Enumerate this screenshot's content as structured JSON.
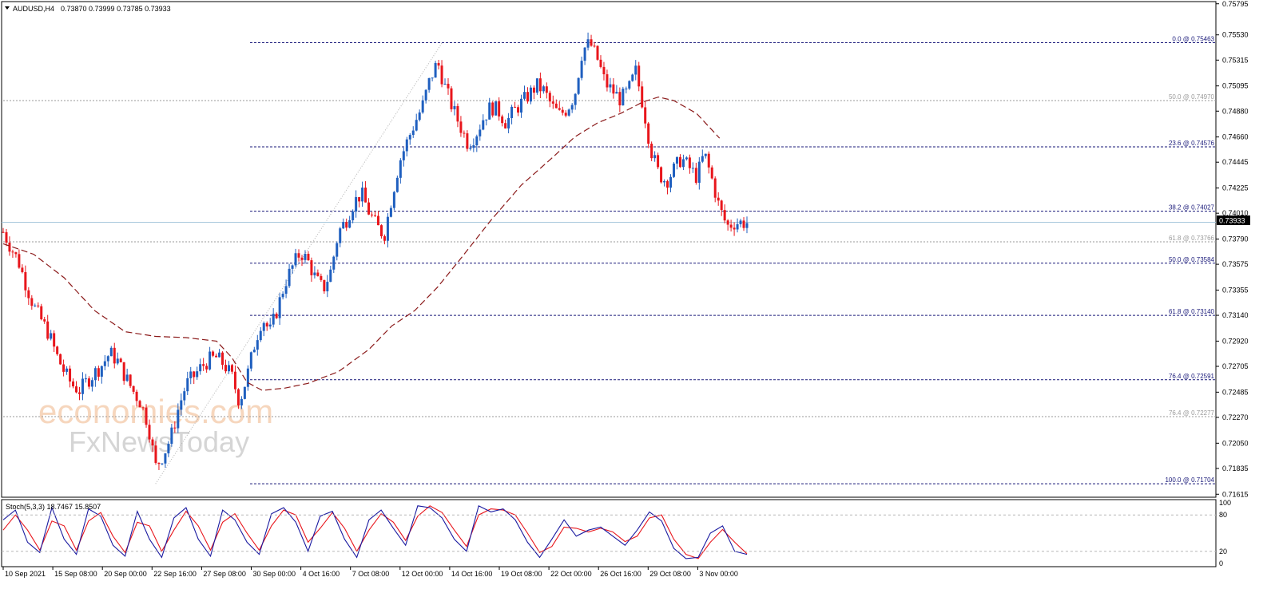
{
  "header": {
    "symbol": "AUDUSD,H4",
    "ohlc": "0.73870 0.73999 0.73785 0.73933"
  },
  "stoch": {
    "label": "Stoch(5,3,3) 18.7467 15.8507",
    "levels": [
      "100",
      "80",
      "20",
      "0"
    ]
  },
  "watermark": {
    "line1": "economies.com",
    "line2": "FxNewsToday"
  },
  "colors": {
    "bull": "#1f5fbf",
    "bear": "#e8161c",
    "ma": "#8b1a1a",
    "fib": "#1a1a7a",
    "fib_gray": "#9a9a9a",
    "stoch_main": "#1a1aa0",
    "stoch_signal": "#e8161c",
    "price_line": "#a8c8dc"
  },
  "chart_data": {
    "type": "candlestick",
    "symbol": "AUDUSD",
    "timeframe": "H4",
    "ylim": [
      0.7161,
      0.758
    ],
    "y_ticks": [
      "0.75795",
      "0.75530",
      "0.75315",
      "0.75095",
      "0.74880",
      "0.74660",
      "0.74445",
      "0.74225",
      "0.74010",
      "0.73790",
      "0.73575",
      "0.73355",
      "0.73140",
      "0.72920",
      "0.72705",
      "0.72485",
      "0.72270",
      "0.72050",
      "0.71835",
      "0.71615"
    ],
    "x_tick_labels": [
      "10 Sep 2021",
      "15 Sep 08:00",
      "20 Sep 00:00",
      "22 Sep 16:00",
      "27 Sep 08:00",
      "30 Sep 00:00",
      "4 Oct 16:00",
      "7 Oct 08:00",
      "12 Oct 00:00",
      "14 Oct 16:00",
      "19 Oct 08:00",
      "22 Oct 00:00",
      "26 Oct 16:00",
      "29 Oct 08:00",
      "3 Nov 00:00"
    ],
    "current_price": "0.73933",
    "fib_levels": [
      {
        "label": "0.0 @ 0.75463",
        "value": 0.75463,
        "style": "primary"
      },
      {
        "label": "50.0 @ 0.74970",
        "value": 0.7497,
        "style": "secondary"
      },
      {
        "label": "23.6 @ 0.74576",
        "value": 0.74576,
        "style": "primary"
      },
      {
        "label": "38.2 @ 0.74027",
        "value": 0.74027,
        "style": "primary"
      },
      {
        "label": "61.8 @ 0.73766",
        "value": 0.73766,
        "style": "secondary"
      },
      {
        "label": "50.0 @ 0.73584",
        "value": 0.73584,
        "style": "primary"
      },
      {
        "label": "61.8 @ 0.73140",
        "value": 0.7314,
        "style": "primary"
      },
      {
        "label": "76.4 @ 0.72591",
        "value": 0.72591,
        "style": "primary"
      },
      {
        "label": "76.4 @ 0.72277",
        "value": 0.72277,
        "style": "secondary"
      },
      {
        "label": "100.0 @ 0.71704",
        "value": 0.71704,
        "style": "primary"
      }
    ],
    "close_path": [
      [
        0,
        0.7385
      ],
      [
        5,
        0.7372
      ],
      [
        10,
        0.736
      ],
      [
        15,
        0.734
      ],
      [
        20,
        0.7322
      ],
      [
        25,
        0.731
      ],
      [
        30,
        0.7298
      ],
      [
        35,
        0.728
      ],
      [
        40,
        0.7266
      ],
      [
        45,
        0.7255
      ],
      [
        50,
        0.725
      ],
      [
        55,
        0.7258
      ],
      [
        60,
        0.7265
      ],
      [
        65,
        0.7272
      ],
      [
        70,
        0.7282
      ],
      [
        75,
        0.7275
      ],
      [
        80,
        0.7262
      ],
      [
        85,
        0.725
      ],
      [
        90,
        0.724
      ],
      [
        95,
        0.7222
      ],
      [
        100,
        0.7185
      ],
      [
        105,
        0.7195
      ],
      [
        110,
        0.721
      ],
      [
        115,
        0.7235
      ],
      [
        120,
        0.7255
      ],
      [
        125,
        0.7262
      ],
      [
        130,
        0.727
      ],
      [
        135,
        0.7276
      ],
      [
        140,
        0.7278
      ],
      [
        145,
        0.7272
      ],
      [
        150,
        0.7262
      ],
      [
        155,
        0.724
      ],
      [
        160,
        0.7262
      ],
      [
        165,
        0.729
      ],
      [
        170,
        0.7312
      ],
      [
        175,
        0.73
      ],
      [
        180,
        0.732
      ],
      [
        185,
        0.7342
      ],
      [
        190,
        0.7356
      ],
      [
        195,
        0.7368
      ],
      [
        200,
        0.736
      ],
      [
        205,
        0.7345
      ],
      [
        210,
        0.7336
      ],
      [
        215,
        0.7352
      ],
      [
        220,
        0.7385
      ],
      [
        225,
        0.7395
      ],
      [
        230,
        0.741
      ],
      [
        235,
        0.7418
      ],
      [
        240,
        0.7402
      ],
      [
        245,
        0.739
      ],
      [
        250,
        0.7382
      ],
      [
        255,
        0.7415
      ],
      [
        260,
        0.7445
      ],
      [
        265,
        0.7462
      ],
      [
        270,
        0.7478
      ],
      [
        275,
        0.7492
      ],
      [
        280,
        0.7515
      ],
      [
        285,
        0.753
      ],
      [
        290,
        0.7508
      ],
      [
        295,
        0.749
      ],
      [
        300,
        0.7475
      ],
      [
        305,
        0.746
      ],
      [
        310,
        0.7468
      ],
      [
        315,
        0.7482
      ],
      [
        320,
        0.7492
      ],
      [
        325,
        0.7488
      ],
      [
        330,
        0.7478
      ],
      [
        335,
        0.7488
      ],
      [
        340,
        0.7495
      ],
      [
        345,
        0.7502
      ],
      [
        350,
        0.751
      ],
      [
        355,
        0.7505
      ],
      [
        360,
        0.7492
      ],
      [
        365,
        0.7485
      ],
      [
        370,
        0.749
      ],
      [
        375,
        0.7502
      ],
      [
        380,
        0.754
      ],
      [
        385,
        0.7546
      ],
      [
        390,
        0.7532
      ],
      [
        395,
        0.7512
      ],
      [
        400,
        0.7505
      ],
      [
        405,
        0.7498
      ],
      [
        410,
        0.7505
      ],
      [
        415,
        0.7522
      ],
      [
        420,
        0.7492
      ],
      [
        425,
        0.7455
      ],
      [
        430,
        0.7435
      ],
      [
        435,
        0.7428
      ],
      [
        440,
        0.7438
      ],
      [
        445,
        0.7448
      ],
      [
        450,
        0.744
      ],
      [
        455,
        0.7432
      ],
      [
        460,
        0.7452
      ],
      [
        465,
        0.743
      ],
      [
        470,
        0.7405
      ],
      [
        475,
        0.739
      ],
      [
        480,
        0.7393
      ]
    ],
    "ma_path": [
      [
        0,
        0.7375
      ],
      [
        20,
        0.7366
      ],
      [
        40,
        0.7346
      ],
      [
        60,
        0.7318
      ],
      [
        80,
        0.73
      ],
      [
        100,
        0.7296
      ],
      [
        120,
        0.7295
      ],
      [
        140,
        0.7292
      ],
      [
        150,
        0.7278
      ],
      [
        160,
        0.7257
      ],
      [
        170,
        0.725
      ],
      [
        185,
        0.7252
      ],
      [
        200,
        0.7256
      ],
      [
        220,
        0.7266
      ],
      [
        240,
        0.7285
      ],
      [
        255,
        0.7305
      ],
      [
        270,
        0.7318
      ],
      [
        285,
        0.7338
      ],
      [
        300,
        0.7362
      ],
      [
        320,
        0.7395
      ],
      [
        340,
        0.7425
      ],
      [
        360,
        0.7448
      ],
      [
        375,
        0.7466
      ],
      [
        390,
        0.7478
      ],
      [
        405,
        0.7486
      ],
      [
        420,
        0.7496
      ],
      [
        430,
        0.75
      ],
      [
        440,
        0.7497
      ],
      [
        455,
        0.7486
      ],
      [
        470,
        0.7465
      ]
    ],
    "stoch_main": [
      [
        0,
        72
      ],
      [
        8,
        88
      ],
      [
        16,
        35
      ],
      [
        24,
        18
      ],
      [
        32,
        92
      ],
      [
        40,
        40
      ],
      [
        48,
        15
      ],
      [
        56,
        90
      ],
      [
        64,
        78
      ],
      [
        72,
        30
      ],
      [
        80,
        12
      ],
      [
        88,
        86
      ],
      [
        96,
        40
      ],
      [
        104,
        10
      ],
      [
        112,
        75
      ],
      [
        120,
        92
      ],
      [
        128,
        40
      ],
      [
        136,
        12
      ],
      [
        144,
        88
      ],
      [
        152,
        72
      ],
      [
        160,
        35
      ],
      [
        168,
        15
      ],
      [
        176,
        82
      ],
      [
        184,
        92
      ],
      [
        192,
        68
      ],
      [
        200,
        20
      ],
      [
        208,
        78
      ],
      [
        216,
        86
      ],
      [
        224,
        40
      ],
      [
        232,
        10
      ],
      [
        240,
        72
      ],
      [
        248,
        88
      ],
      [
        256,
        58
      ],
      [
        264,
        30
      ],
      [
        272,
        95
      ],
      [
        280,
        92
      ],
      [
        288,
        75
      ],
      [
        296,
        40
      ],
      [
        304,
        20
      ],
      [
        312,
        95
      ],
      [
        320,
        85
      ],
      [
        328,
        90
      ],
      [
        336,
        72
      ],
      [
        344,
        35
      ],
      [
        352,
        10
      ],
      [
        360,
        40
      ],
      [
        368,
        72
      ],
      [
        376,
        45
      ],
      [
        384,
        55
      ],
      [
        392,
        60
      ],
      [
        400,
        45
      ],
      [
        408,
        30
      ],
      [
        416,
        55
      ],
      [
        424,
        85
      ],
      [
        432,
        70
      ],
      [
        440,
        25
      ],
      [
        448,
        8
      ],
      [
        456,
        10
      ],
      [
        464,
        50
      ],
      [
        472,
        62
      ],
      [
        480,
        20
      ],
      [
        488,
        15
      ]
    ],
    "stoch_signal": [
      [
        0,
        55
      ],
      [
        8,
        80
      ],
      [
        16,
        55
      ],
      [
        24,
        22
      ],
      [
        32,
        70
      ],
      [
        40,
        62
      ],
      [
        48,
        22
      ],
      [
        56,
        70
      ],
      [
        64,
        84
      ],
      [
        72,
        45
      ],
      [
        80,
        18
      ],
      [
        88,
        68
      ],
      [
        96,
        62
      ],
      [
        104,
        20
      ],
      [
        112,
        55
      ],
      [
        120,
        86
      ],
      [
        128,
        62
      ],
      [
        136,
        22
      ],
      [
        144,
        68
      ],
      [
        152,
        82
      ],
      [
        160,
        50
      ],
      [
        168,
        22
      ],
      [
        176,
        62
      ],
      [
        184,
        88
      ],
      [
        192,
        80
      ],
      [
        200,
        35
      ],
      [
        208,
        58
      ],
      [
        216,
        84
      ],
      [
        224,
        58
      ],
      [
        232,
        20
      ],
      [
        240,
        55
      ],
      [
        248,
        82
      ],
      [
        256,
        68
      ],
      [
        264,
        38
      ],
      [
        272,
        78
      ],
      [
        280,
        95
      ],
      [
        288,
        84
      ],
      [
        296,
        55
      ],
      [
        304,
        28
      ],
      [
        312,
        80
      ],
      [
        320,
        90
      ],
      [
        328,
        88
      ],
      [
        336,
        80
      ],
      [
        344,
        50
      ],
      [
        352,
        18
      ],
      [
        360,
        28
      ],
      [
        368,
        60
      ],
      [
        376,
        58
      ],
      [
        384,
        52
      ],
      [
        392,
        58
      ],
      [
        400,
        52
      ],
      [
        408,
        36
      ],
      [
        416,
        45
      ],
      [
        424,
        75
      ],
      [
        432,
        80
      ],
      [
        440,
        40
      ],
      [
        448,
        15
      ],
      [
        456,
        8
      ],
      [
        464,
        35
      ],
      [
        472,
        56
      ],
      [
        480,
        35
      ],
      [
        488,
        16
      ]
    ]
  }
}
